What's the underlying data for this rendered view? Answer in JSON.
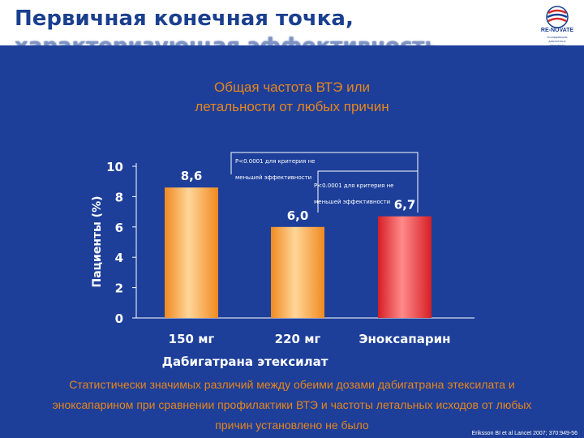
{
  "slide": {
    "title_line1": "Первичная конечная точка,",
    "title_line2": "характеризующая эффективность",
    "subtitle": "Общая частота ВТЭ или летальности от любых причин",
    "conclusion": "Статистически значимых различий между обеими дозами дабигатрана этексилата и эноксапарином при сравнении профилактики ВТЭ и частоты летальных исходов от любых причин установлено не было",
    "citation": "Eriksson BI et al Lancet 2007; 370:949-56",
    "logo_brand": "RE-NOVATE",
    "logo_small_lines": [
      "ИССЛЕДОВАНИЕ",
      "ДАБИГАТРАНА",
      "ЭТЕКСИЛАТА"
    ]
  },
  "colors": {
    "title": "#1a3f8f",
    "panel": "#1d3f9a",
    "accent": "#e8861a",
    "bar_dabigatran": "#f7a234",
    "bar_enoxaparin": "#e2272c"
  },
  "chart_data": {
    "type": "bar",
    "categories": [
      "150 мг",
      "220 мг",
      "Эноксапарин"
    ],
    "values": [
      8.6,
      6.0,
      6.7
    ],
    "value_labels": [
      "8,6",
      "6,0",
      "6,7"
    ],
    "ylabel": "Пациенты (%)",
    "group_label": "Дабигатрана этексилат",
    "ylim": [
      0,
      10
    ],
    "yticks": [
      0,
      2,
      4,
      6,
      8,
      10
    ],
    "grid": false,
    "annotations": [
      {
        "text": "P<0.0001 для критерия не меньшей эффективности"
      },
      {
        "text": "P<0.0001 для критерия не меньшей эффективности"
      }
    ]
  }
}
